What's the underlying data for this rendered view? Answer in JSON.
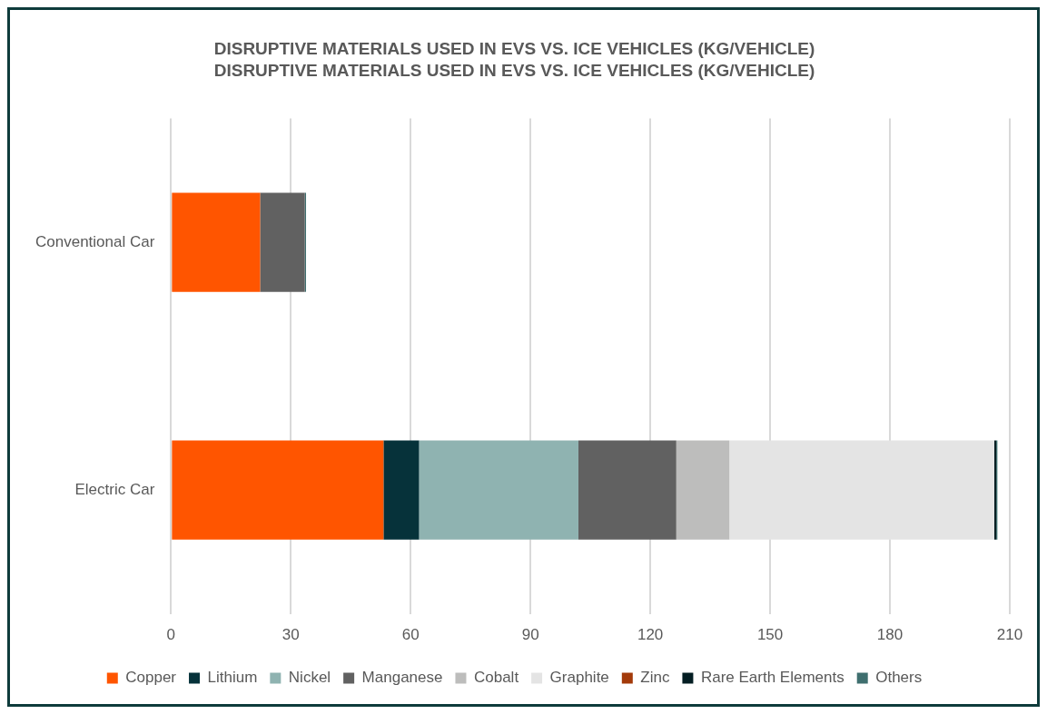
{
  "chart_data": {
    "type": "bar",
    "title": "DISRUPTIVE MATERIALS USED IN EVS VS. ICE VEHICLES (KG/VEHICLE)",
    "subtitle": "DISRUPTIVE MATERIALS USED IN EVS VS. ICE VEHICLES (KG/VEHICLE)",
    "orientation": "horizontal",
    "stacked": true,
    "categories": [
      "Conventional Car",
      "Electric Car"
    ],
    "series": [
      {
        "name": "Copper",
        "color": "#ff5500",
        "values": [
          22.3,
          53.2
        ]
      },
      {
        "name": "Lithium",
        "color": "#06323a",
        "values": [
          0,
          8.9
        ]
      },
      {
        "name": "Nickel",
        "color": "#8fb3b1",
        "values": [
          0,
          39.9
        ]
      },
      {
        "name": "Manganese",
        "color": "#616161",
        "values": [
          11.2,
          24.5
        ]
      },
      {
        "name": "Cobalt",
        "color": "#bdbdbc",
        "values": [
          0,
          13.3
        ]
      },
      {
        "name": "Graphite",
        "color": "#e4e4e4",
        "values": [
          0,
          66.3
        ]
      },
      {
        "name": "Zinc",
        "color": "#a33a0a",
        "values": [
          null,
          null
        ]
      },
      {
        "name": "Rare Earth Elements",
        "color": "#041e23",
        "values": [
          0,
          0.5
        ]
      },
      {
        "name": "Others",
        "color": "#3f6f6f",
        "values": [
          0.3,
          0.3
        ]
      }
    ],
    "xlim": [
      0,
      210
    ],
    "xticks": [
      0,
      30,
      60,
      90,
      120,
      150,
      180,
      210
    ],
    "grid": "x",
    "legend": "bottom"
  }
}
